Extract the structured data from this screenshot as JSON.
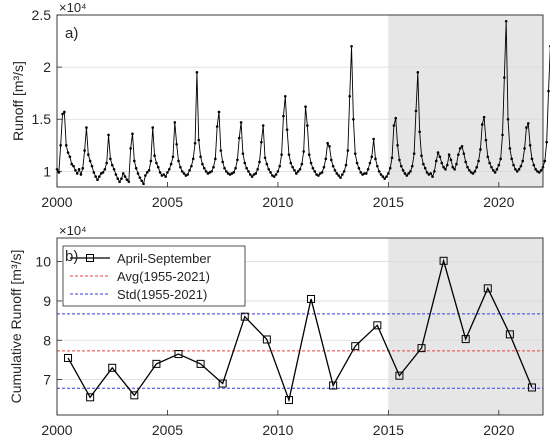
{
  "chart_data": [
    {
      "type": "line",
      "panel_label": "a)",
      "xlim": [
        2000,
        2022
      ],
      "ylim": [
        0.85,
        2.5
      ],
      "x_ticks": [
        2000,
        2005,
        2010,
        2015,
        2020
      ],
      "y_ticks": [
        1,
        1.5,
        2,
        2.5
      ],
      "ylabel": "Runoff [m³/s]",
      "exponent_label": "×10⁴",
      "shaded_x_range": [
        2015,
        2022
      ],
      "grid": "y",
      "series": [
        {
          "color": "#000000",
          "values": [
            1.02,
            0.99,
            1.25,
            1.55,
            1.57,
            1.25,
            1.18,
            1.14,
            1.07,
            1.05,
            1.01,
            0.98,
            1.02,
            0.97,
            1.03,
            1.2,
            1.42,
            1.16,
            1.1,
            1.05,
            0.99,
            0.95,
            0.92,
            0.95,
            0.98,
            0.99,
            1.02,
            1.08,
            1.35,
            1.12,
            1.06,
            1.02,
            0.97,
            0.93,
            0.9,
            0.93,
            0.98,
            0.95,
            0.92,
            0.9,
            1.22,
            1.36,
            1.1,
            1.03,
            0.98,
            0.94,
            0.91,
            0.88,
            0.96,
            0.99,
            1.01,
            1.1,
            1.42,
            1.15,
            1.08,
            1.04,
            0.99,
            0.96,
            0.97,
            0.95,
            0.99,
            1.02,
            1.07,
            1.14,
            1.47,
            1.26,
            1.1,
            1.04,
            1.0,
            0.98,
            0.96,
            0.97,
            1.01,
            1.05,
            1.12,
            1.27,
            1.95,
            1.3,
            1.14,
            1.07,
            1.03,
            1.0,
            0.98,
            0.99,
            1.0,
            1.04,
            1.12,
            1.43,
            1.57,
            1.2,
            1.09,
            1.03,
            1.0,
            0.98,
            0.97,
            0.98,
            0.99,
            1.03,
            1.11,
            1.32,
            1.47,
            1.17,
            1.08,
            1.03,
            1.0,
            0.97,
            0.95,
            0.97,
            0.98,
            1.02,
            1.09,
            1.28,
            1.44,
            1.13,
            1.07,
            1.02,
            0.99,
            0.96,
            0.95,
            0.97,
            1.0,
            1.05,
            1.16,
            1.53,
            1.72,
            1.4,
            1.16,
            1.08,
            1.04,
            1.01,
            0.98,
            1.0,
            1.02,
            1.07,
            1.19,
            1.62,
            1.44,
            1.16,
            1.08,
            1.03,
            1.0,
            0.97,
            0.96,
            0.98,
            0.99,
            1.04,
            1.12,
            1.27,
            1.24,
            1.11,
            1.05,
            1.01,
            0.98,
            0.96,
            0.94,
            0.97,
            1.0,
            1.06,
            1.2,
            1.72,
            2.2,
            1.5,
            1.17,
            1.08,
            1.03,
            0.99,
            0.97,
            0.98,
            0.98,
            1.02,
            1.08,
            1.14,
            1.31,
            1.12,
            1.05,
            1.0,
            0.97,
            0.95,
            0.93,
            0.95,
            0.98,
            1.03,
            1.13,
            1.44,
            1.51,
            1.25,
            1.11,
            1.05,
            1.01,
            0.98,
            0.96,
            0.98,
            1.0,
            1.05,
            1.17,
            1.58,
            1.95,
            1.38,
            1.15,
            1.07,
            1.03,
            0.99,
            0.97,
            0.98,
            0.95,
            1.0,
            1.1,
            1.18,
            1.14,
            1.08,
            1.04,
            1.02,
            1.06,
            1.16,
            1.11,
            1.04,
            1.02,
            1.07,
            1.16,
            1.22,
            1.24,
            1.17,
            1.09,
            1.04,
            1.01,
            0.99,
            0.98,
            1.0,
            1.04,
            1.1,
            1.21,
            1.45,
            1.52,
            1.3,
            1.14,
            1.08,
            1.04,
            1.01,
            0.99,
            1.02,
            1.06,
            1.12,
            1.35,
            1.9,
            2.44,
            1.5,
            1.22,
            1.12,
            1.06,
            1.02,
            1.0,
            1.02,
            1.05,
            1.1,
            1.22,
            1.42,
            1.46,
            1.25,
            1.12,
            1.06,
            1.02,
            1.0,
            0.99,
            1.01,
            1.04,
            1.1,
            1.28,
            1.77,
            2.2,
            1.45,
            1.18,
            1.09,
            1.04,
            1.01,
            0.99,
            1.02,
            1.06,
            1.14,
            1.33,
            1.7,
            1.92,
            1.38,
            1.16,
            1.08,
            1.03,
            1.0,
            0.98,
            1.01,
            1.04,
            1.1,
            1.18,
            1.2,
            1.15,
            1.1,
            1.08,
            1.12,
            1.14,
            1.12,
            1.11,
            1.12,
            1.12,
            1.12
          ]
        }
      ]
    },
    {
      "type": "line",
      "panel_label": "b)",
      "xlim": [
        2000,
        2022
      ],
      "ylim": [
        6.1,
        10.6
      ],
      "x_ticks": [
        2000,
        2005,
        2010,
        2015,
        2020
      ],
      "y_ticks": [
        6,
        7,
        8,
        9,
        10
      ],
      "ylabel": "Cumulative Runoff [m³/s]",
      "exponent_label": "×10⁴",
      "shaded_x_range": [
        2015,
        2022
      ],
      "grid": "y",
      "legend_position": "top-left",
      "series": [
        {
          "name": "April-September",
          "color": "#000000",
          "marker": "square",
          "x": [
            2000.5,
            2001.5,
            2002.5,
            2003.5,
            2004.5,
            2005.5,
            2006.5,
            2007.5,
            2008.5,
            2009.5,
            2010.5,
            2011.5,
            2012.5,
            2013.5,
            2014.5,
            2015.5,
            2016.5,
            2017.5,
            2018.5,
            2019.5,
            2020.5,
            2021.5
          ],
          "values": [
            7.55,
            6.55,
            7.3,
            6.6,
            7.4,
            7.65,
            7.4,
            6.9,
            8.6,
            8.02,
            6.48,
            9.05,
            6.85,
            7.85,
            8.38,
            7.1,
            7.8,
            10.02,
            8.03,
            9.32,
            8.15,
            6.8
          ]
        },
        {
          "name": "Avg(1955-2021)",
          "color": "#e8413c",
          "style": "dashed",
          "values": [
            7.73
          ]
        },
        {
          "name": "Std(1955-2021)",
          "color": "#3a3ae0",
          "style": "dashed",
          "values": [
            6.78,
            8.67
          ]
        }
      ]
    }
  ]
}
